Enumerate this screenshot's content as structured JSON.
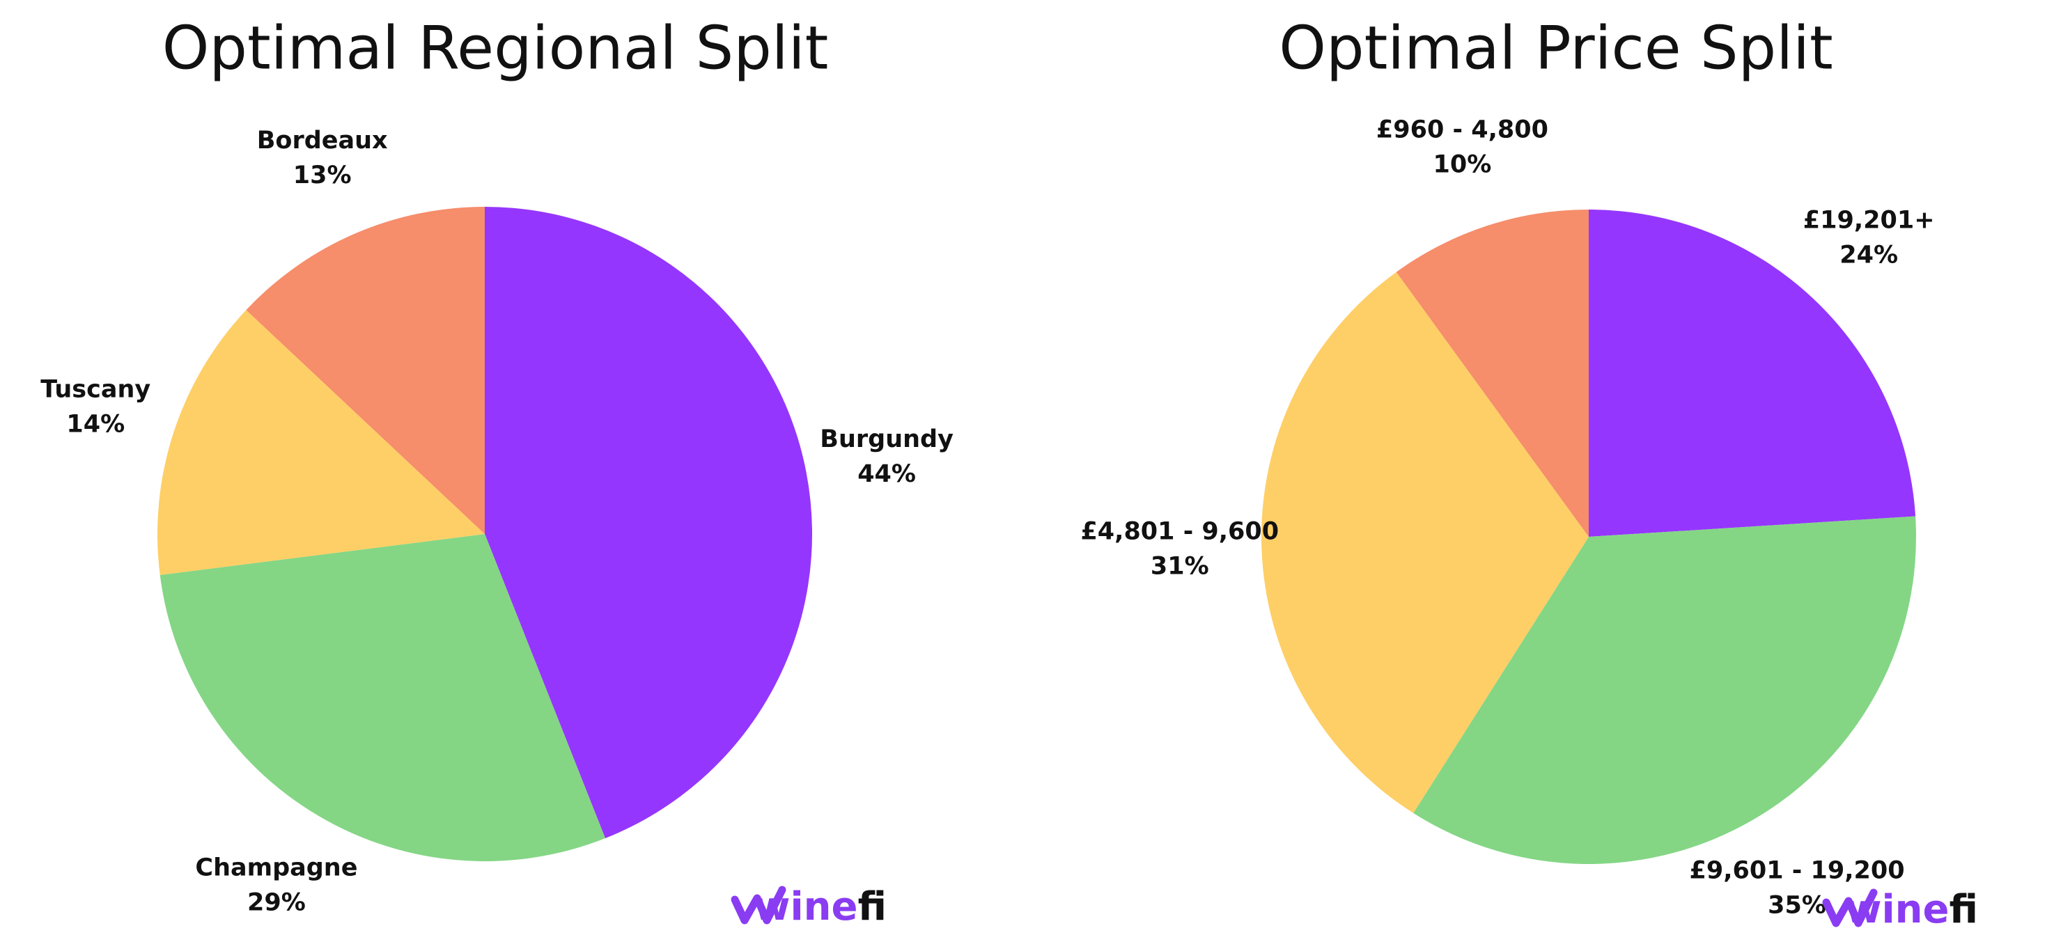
{
  "chart_data": [
    {
      "type": "pie",
      "title": "Optimal Regional Split",
      "categories": [
        "Burgundy",
        "Champagne",
        "Tuscany",
        "Bordeaux"
      ],
      "values": [
        44,
        29,
        14,
        13
      ],
      "value_labels": [
        "44%",
        "29%",
        "14%",
        "13%"
      ],
      "colors": [
        "#9536fe",
        "#84d685",
        "#fecf67",
        "#f68d6b"
      ]
    },
    {
      "type": "pie",
      "title": "Optimal Price Split",
      "categories": [
        "£19,201+",
        "£9,601 - 19,200",
        "£4,801 - 9,600",
        "£960 - 4,800"
      ],
      "values": [
        24,
        35,
        31,
        10
      ],
      "value_labels": [
        "24%",
        "35%",
        "31%",
        "10%"
      ],
      "colors": [
        "#9536fe",
        "#84d685",
        "#fecf67",
        "#f68d6b"
      ]
    }
  ],
  "logo": {
    "part1": "wine",
    "part2": "fi"
  }
}
